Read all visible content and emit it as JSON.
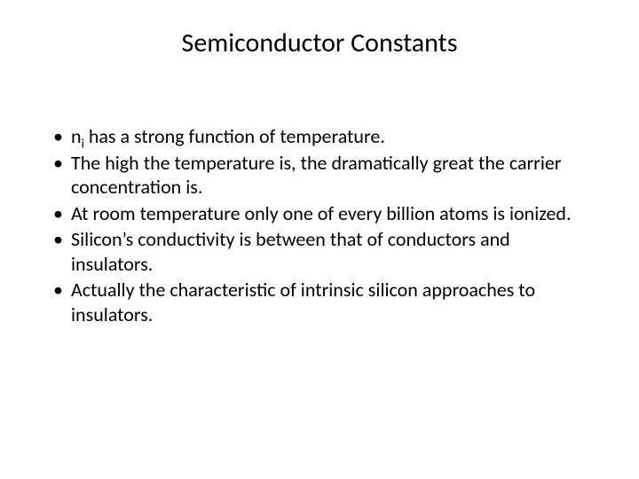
{
  "slide": {
    "title": "Semiconductor Constants",
    "bullets": [
      {
        "pre": "n",
        "sub": "i",
        "post": " has a strong function of temperature."
      },
      {
        "text": "The high the temperature is, the dramatically great the carrier concentration is."
      },
      {
        "text": "At room temperature only one of every billion atoms is ionized."
      },
      {
        "text": "Silicon’s conductivity is between that of conductors and insulators."
      },
      {
        "text": "Actually the characteristic of intrinsic silicon approaches to insulators."
      }
    ]
  },
  "style": {
    "background_color": "#ffffff",
    "text_color": "#000000",
    "title_fontsize": 30,
    "body_fontsize": 22,
    "font_family": "Calibri"
  }
}
